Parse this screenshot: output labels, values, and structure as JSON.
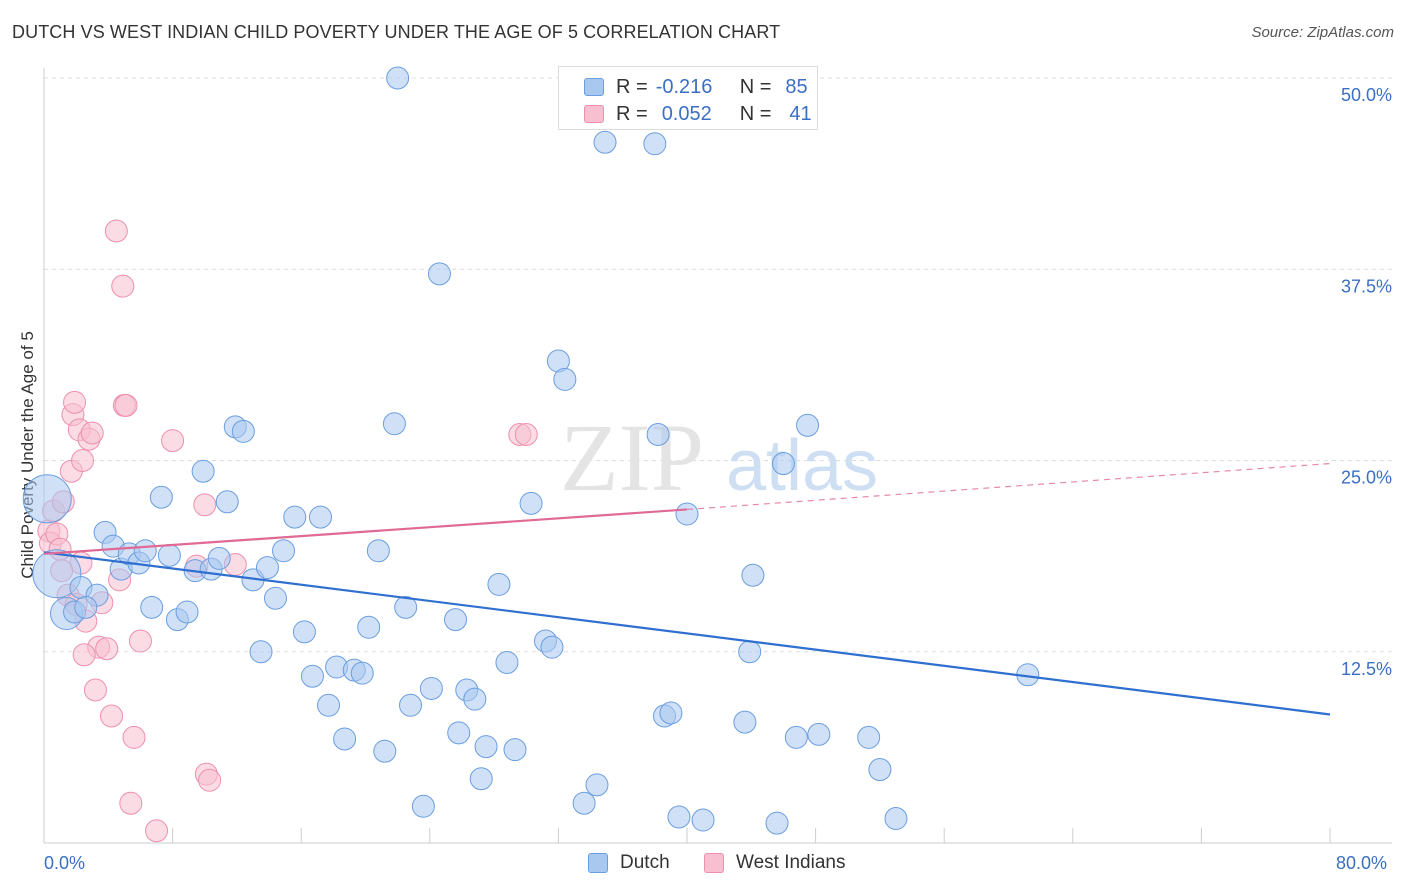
{
  "title": "DUTCH VS WEST INDIAN CHILD POVERTY UNDER THE AGE OF 5 CORRELATION CHART",
  "source": "Source: ZipAtlas.com",
  "watermark": {
    "zip": "ZIP",
    "atlas": "atlas"
  },
  "legend": {
    "dutch": {
      "r_label": "R =",
      "r_value": "-0.216",
      "n_label": "N =",
      "n_value": "85"
    },
    "west_indians": {
      "r_label": "R =",
      "r_value": "0.052",
      "n_label": "N =",
      "n_value": "41"
    }
  },
  "bottom_legend": {
    "dutch": "Dutch",
    "west_indians": "West Indians"
  },
  "x_labels": {
    "left": "0.0%",
    "right": "80.0%"
  },
  "colors": {
    "dutch_fill": "#a9c8f0",
    "dutch_stroke": "#6a9ee0",
    "dutch_line": "#2f6fd0",
    "wi_fill": "#f7bfd0",
    "wi_stroke": "#ee8fae",
    "wi_line": "#e06a95",
    "axis_text": "#3b6fc4",
    "grid": "#dddddd"
  },
  "chart_data": {
    "type": "scatter",
    "title": "DUTCH VS WEST INDIAN CHILD POVERTY UNDER THE AGE OF 5 CORRELATION CHART",
    "xlabel": "",
    "ylabel": "Child Poverty Under the Age of 5",
    "xlim": [
      0,
      80
    ],
    "ylim": [
      0,
      50
    ],
    "y_ticks": [
      "50.0%",
      "37.5%",
      "25.0%",
      "12.5%"
    ],
    "y_tick_values": [
      50,
      37.5,
      25,
      12.5
    ],
    "grid": true,
    "series": [
      {
        "name": "Dutch",
        "r": -0.216,
        "n": 85,
        "trend": {
          "x": [
            0,
            80
          ],
          "y": [
            19.0,
            8.4
          ]
        },
        "points": [
          [
            0.2,
            22.5
          ],
          [
            0.8,
            17.6
          ],
          [
            1.4,
            15.0
          ],
          [
            1.9,
            15.1
          ],
          [
            2.3,
            16.7
          ],
          [
            3.3,
            16.2
          ],
          [
            3.8,
            20.3
          ],
          [
            4.3,
            19.4
          ],
          [
            4.8,
            17.9
          ],
          [
            5.3,
            18.9
          ],
          [
            5.9,
            18.3
          ],
          [
            6.3,
            19.1
          ],
          [
            6.7,
            15.4
          ],
          [
            7.3,
            22.6
          ],
          [
            7.8,
            18.8
          ],
          [
            8.3,
            14.6
          ],
          [
            8.9,
            15.1
          ],
          [
            9.4,
            17.8
          ],
          [
            9.9,
            24.3
          ],
          [
            10.4,
            17.9
          ],
          [
            10.9,
            18.6
          ],
          [
            11.4,
            22.3
          ],
          [
            11.9,
            27.2
          ],
          [
            12.4,
            26.9
          ],
          [
            13.0,
            17.2
          ],
          [
            13.5,
            12.5
          ],
          [
            13.9,
            18.0
          ],
          [
            14.4,
            16.0
          ],
          [
            14.9,
            19.1
          ],
          [
            15.6,
            21.3
          ],
          [
            16.2,
            13.8
          ],
          [
            16.7,
            10.9
          ],
          [
            17.2,
            21.3
          ],
          [
            17.7,
            9.0
          ],
          [
            18.2,
            11.5
          ],
          [
            18.7,
            6.8
          ],
          [
            19.3,
            11.3
          ],
          [
            19.8,
            11.1
          ],
          [
            20.2,
            14.1
          ],
          [
            20.8,
            19.1
          ],
          [
            21.2,
            6.0
          ],
          [
            21.8,
            27.4
          ],
          [
            22.0,
            50.0
          ],
          [
            22.5,
            15.4
          ],
          [
            22.8,
            9.0
          ],
          [
            23.6,
            2.4
          ],
          [
            24.1,
            10.1
          ],
          [
            24.6,
            37.2
          ],
          [
            25.6,
            14.6
          ],
          [
            25.8,
            7.2
          ],
          [
            26.3,
            10.0
          ],
          [
            26.8,
            9.4
          ],
          [
            27.2,
            4.2
          ],
          [
            27.5,
            6.3
          ],
          [
            28.3,
            16.9
          ],
          [
            28.8,
            11.8
          ],
          [
            29.3,
            6.1
          ],
          [
            30.3,
            22.2
          ],
          [
            31.2,
            13.2
          ],
          [
            31.6,
            12.8
          ],
          [
            32.0,
            31.5
          ],
          [
            32.4,
            30.3
          ],
          [
            33.6,
            2.6
          ],
          [
            34.4,
            3.8
          ],
          [
            34.9,
            45.8
          ],
          [
            38.0,
            45.7
          ],
          [
            38.2,
            26.7
          ],
          [
            38.6,
            8.3
          ],
          [
            39.0,
            8.5
          ],
          [
            39.5,
            1.7
          ],
          [
            40.0,
            21.5
          ],
          [
            41.0,
            1.5
          ],
          [
            43.6,
            7.9
          ],
          [
            43.9,
            12.5
          ],
          [
            44.1,
            17.5
          ],
          [
            45.6,
            1.3
          ],
          [
            46.0,
            24.8
          ],
          [
            46.8,
            6.9
          ],
          [
            47.5,
            27.3
          ],
          [
            48.2,
            7.1
          ],
          [
            51.3,
            6.9
          ],
          [
            52.0,
            4.8
          ],
          [
            53.0,
            1.6
          ],
          [
            61.2,
            11.0
          ],
          [
            2.6,
            15.4
          ]
        ],
        "sizes": [
          24,
          24,
          16,
          11,
          11,
          11,
          11,
          11,
          11,
          11,
          11,
          11,
          11,
          11,
          11,
          11,
          11,
          11,
          11,
          11,
          11,
          11,
          11,
          11,
          11,
          11,
          11,
          11,
          11,
          11,
          11,
          11,
          11,
          11,
          11,
          11,
          11,
          11,
          11,
          11,
          11,
          11,
          11,
          11,
          11,
          11,
          11,
          11,
          11,
          11,
          11,
          11,
          11,
          11,
          11,
          11,
          11,
          11,
          11,
          11,
          11,
          11,
          11,
          11,
          11,
          11,
          11,
          11,
          11,
          11,
          11,
          11,
          11,
          11,
          11,
          11,
          11,
          11,
          11,
          11,
          11,
          11,
          11,
          11,
          11
        ]
      },
      {
        "name": "West Indians",
        "r": 0.052,
        "n": 41,
        "trend": {
          "x": [
            0,
            40
          ],
          "y": [
            18.9,
            21.8
          ],
          "dashed_to": {
            "x": 80,
            "y": 24.8
          }
        },
        "points": [
          [
            0.3,
            20.4
          ],
          [
            0.4,
            19.6
          ],
          [
            0.6,
            21.7
          ],
          [
            0.8,
            20.2
          ],
          [
            1.0,
            19.2
          ],
          [
            1.2,
            22.3
          ],
          [
            1.5,
            16.2
          ],
          [
            1.7,
            24.3
          ],
          [
            1.8,
            28.0
          ],
          [
            1.9,
            28.8
          ],
          [
            2.0,
            15.6
          ],
          [
            2.2,
            27.0
          ],
          [
            2.3,
            18.3
          ],
          [
            2.4,
            25.0
          ],
          [
            2.6,
            14.5
          ],
          [
            2.8,
            26.4
          ],
          [
            3.0,
            26.8
          ],
          [
            3.2,
            10.0
          ],
          [
            3.4,
            12.8
          ],
          [
            3.6,
            15.7
          ],
          [
            3.9,
            12.7
          ],
          [
            4.2,
            8.3
          ],
          [
            4.5,
            40.0
          ],
          [
            4.7,
            17.2
          ],
          [
            4.9,
            36.4
          ],
          [
            5.0,
            28.6
          ],
          [
            5.1,
            28.6
          ],
          [
            5.4,
            2.6
          ],
          [
            5.6,
            6.9
          ],
          [
            6.0,
            13.2
          ],
          [
            7.0,
            0.8
          ],
          [
            8.0,
            26.3
          ],
          [
            9.5,
            18.1
          ],
          [
            10.0,
            22.1
          ],
          [
            10.1,
            4.5
          ],
          [
            10.3,
            4.1
          ],
          [
            11.9,
            18.2
          ],
          [
            29.6,
            26.7
          ],
          [
            30.0,
            26.7
          ],
          [
            2.5,
            12.3
          ],
          [
            1.1,
            17.8
          ]
        ],
        "sizes": [
          11,
          11,
          11,
          11,
          11,
          11,
          11,
          11,
          11,
          11,
          11,
          11,
          11,
          11,
          11,
          11,
          11,
          11,
          11,
          11,
          11,
          11,
          11,
          11,
          11,
          11,
          11,
          11,
          11,
          11,
          11,
          11,
          11,
          11,
          11,
          11,
          11,
          11,
          11,
          11,
          11
        ]
      }
    ]
  }
}
